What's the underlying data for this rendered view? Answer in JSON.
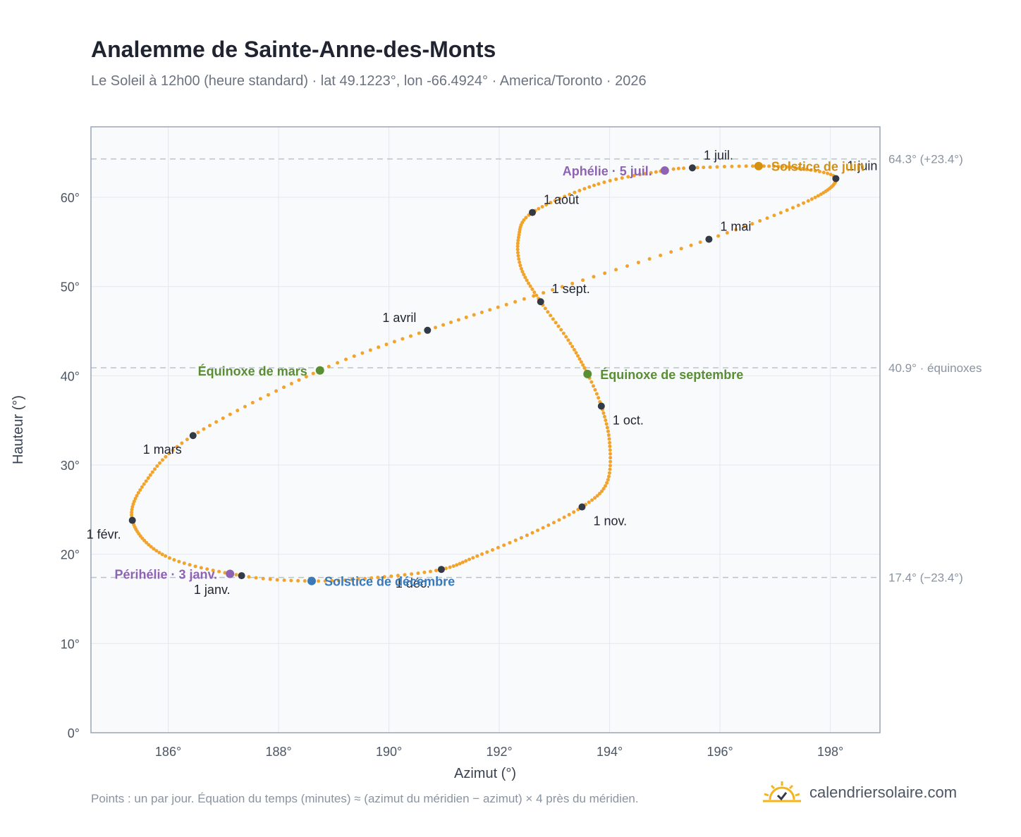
{
  "header": {
    "title": "Analemme de Sainte-Anne-des-Monts",
    "subtitle": "Le Soleil à 12h00 (heure standard) · lat 49.1223°, lon -66.4924° · America/Toronto · 2026"
  },
  "footer": {
    "note": "Points : un par jour. Équation du temps (minutes) ≈ (azimut du méridien − azimut) × 4 près du méridien.",
    "brand": "calendriersolaire.com"
  },
  "colors": {
    "curve": "#f2a32b",
    "month_marker": "#333a46",
    "aphelion_perihelion": "#8e63b3",
    "equinox": "#5a8e34",
    "june_solstice": "#d4900f",
    "december_solstice": "#3a78b8",
    "reference_line": "#b9c3cd",
    "plot_background": "#f8fafc",
    "grid": "#e3e8ee"
  },
  "chart_data": {
    "type": "scatter",
    "title": "Analemme de Sainte-Anne-des-Monts",
    "xlabel": "Azimut (°)",
    "ylabel": "Hauteur (°)",
    "xlim": [
      184.6,
      198.9
    ],
    "ylim": [
      0,
      67.9
    ],
    "x_ticks": [
      {
        "value": 186,
        "label": "186°"
      },
      {
        "value": 188,
        "label": "188°"
      },
      {
        "value": 190,
        "label": "190°"
      },
      {
        "value": 192,
        "label": "192°"
      },
      {
        "value": 194,
        "label": "194°"
      },
      {
        "value": 196,
        "label": "196°"
      },
      {
        "value": 198,
        "label": "198°"
      }
    ],
    "y_ticks": [
      {
        "value": 0,
        "label": "0°"
      },
      {
        "value": 10,
        "label": "10°"
      },
      {
        "value": 20,
        "label": "20°"
      },
      {
        "value": 30,
        "label": "30°"
      },
      {
        "value": 40,
        "label": "40°"
      },
      {
        "value": 50,
        "label": "50°"
      },
      {
        "value": 60,
        "label": "60°"
      }
    ],
    "grid": true,
    "reference_lines": [
      {
        "value": 64.3,
        "label": "64.3° (+23.4°)"
      },
      {
        "value": 40.9,
        "label": "40.9° · équinoxes"
      },
      {
        "value": 17.4,
        "label": "17.4° (−23.4°)"
      }
    ],
    "daily_path": [
      {
        "day": 1,
        "az": 187.33,
        "alt": 17.6
      },
      {
        "day": 15,
        "az": 185.95,
        "alt": 19.8
      },
      {
        "day": 32,
        "az": 185.35,
        "alt": 23.8
      },
      {
        "day": 46,
        "az": 185.6,
        "alt": 28.2
      },
      {
        "day": 60,
        "az": 186.45,
        "alt": 33.3
      },
      {
        "day": 78,
        "az": 188.75,
        "alt": 40.6
      },
      {
        "day": 91,
        "az": 190.7,
        "alt": 45.1
      },
      {
        "day": 105,
        "az": 192.8,
        "alt": 49.3
      },
      {
        "day": 121,
        "az": 195.8,
        "alt": 55.3
      },
      {
        "day": 135,
        "az": 197.6,
        "alt": 59.6
      },
      {
        "day": 152,
        "az": 198.1,
        "alt": 62.1
      },
      {
        "day": 162,
        "az": 197.5,
        "alt": 63.2
      },
      {
        "day": 172,
        "az": 196.7,
        "alt": 63.5
      },
      {
        "day": 182,
        "az": 195.5,
        "alt": 63.3
      },
      {
        "day": 186,
        "az": 195.0,
        "alt": 63.0
      },
      {
        "day": 198,
        "az": 193.8,
        "alt": 61.5
      },
      {
        "day": 213,
        "az": 192.6,
        "alt": 58.3
      },
      {
        "day": 223,
        "az": 192.35,
        "alt": 55.5
      },
      {
        "day": 233,
        "az": 192.4,
        "alt": 52.0
      },
      {
        "day": 244,
        "az": 192.75,
        "alt": 48.3
      },
      {
        "day": 255,
        "az": 193.25,
        "alt": 44.0
      },
      {
        "day": 266,
        "az": 193.6,
        "alt": 40.2
      },
      {
        "day": 274,
        "az": 193.85,
        "alt": 36.6
      },
      {
        "day": 284,
        "az": 194.0,
        "alt": 32.5
      },
      {
        "day": 295,
        "az": 193.95,
        "alt": 28.0
      },
      {
        "day": 305,
        "az": 193.5,
        "alt": 25.3
      },
      {
        "day": 315,
        "az": 192.6,
        "alt": 22.4
      },
      {
        "day": 325,
        "az": 191.6,
        "alt": 19.8
      },
      {
        "day": 335,
        "az": 190.95,
        "alt": 18.3
      },
      {
        "day": 345,
        "az": 189.8,
        "alt": 17.4
      },
      {
        "day": 355,
        "az": 188.6,
        "alt": 17.0
      },
      {
        "day": 365,
        "az": 187.33,
        "alt": 17.6
      }
    ],
    "month_markers": [
      {
        "label": "1 janv.",
        "az": 187.33,
        "alt": 17.6,
        "pos": "below-left"
      },
      {
        "label": "1 févr.",
        "az": 185.35,
        "alt": 23.8,
        "pos": "below-left"
      },
      {
        "label": "1 mars",
        "az": 186.45,
        "alt": 33.3,
        "pos": "below-left"
      },
      {
        "label": "1 avril",
        "az": 190.7,
        "alt": 45.1,
        "pos": "above-left"
      },
      {
        "label": "1 mai",
        "az": 195.8,
        "alt": 55.3,
        "pos": "above-right"
      },
      {
        "label": "1 juin",
        "az": 198.1,
        "alt": 62.1,
        "pos": "above-right"
      },
      {
        "label": "1 juil.",
        "az": 195.5,
        "alt": 63.3,
        "pos": "above-right"
      },
      {
        "label": "1 août",
        "az": 192.6,
        "alt": 58.3,
        "pos": "above-right"
      },
      {
        "label": "1 sept.",
        "az": 192.75,
        "alt": 48.3,
        "pos": "above-right"
      },
      {
        "label": "1 oct.",
        "az": 193.85,
        "alt": 36.6,
        "pos": "below-right"
      },
      {
        "label": "1 nov.",
        "az": 193.5,
        "alt": 25.3,
        "pos": "below-right"
      },
      {
        "label": "1 déc.",
        "az": 190.95,
        "alt": 18.3,
        "pos": "below-left"
      }
    ],
    "events": [
      {
        "label": "Périhélie · 3 janv.",
        "az": 187.12,
        "alt": 17.8,
        "color": "#8e63b3",
        "pos": "left"
      },
      {
        "label": "Aphélie · 5 juil.",
        "az": 195.0,
        "alt": 63.0,
        "color": "#8e63b3",
        "pos": "left"
      },
      {
        "label": "Équinoxe de mars",
        "az": 188.75,
        "alt": 40.6,
        "color": "#5a8e34",
        "pos": "left"
      },
      {
        "label": "Équinoxe de septembre",
        "az": 193.6,
        "alt": 40.2,
        "color": "#5a8e34",
        "pos": "right"
      },
      {
        "label": "Solstice de juin",
        "az": 196.7,
        "alt": 63.5,
        "color": "#d4900f",
        "pos": "right"
      },
      {
        "label": "Solstice de décembre",
        "az": 188.6,
        "alt": 17.0,
        "color": "#3a78b8",
        "pos": "right"
      }
    ]
  }
}
